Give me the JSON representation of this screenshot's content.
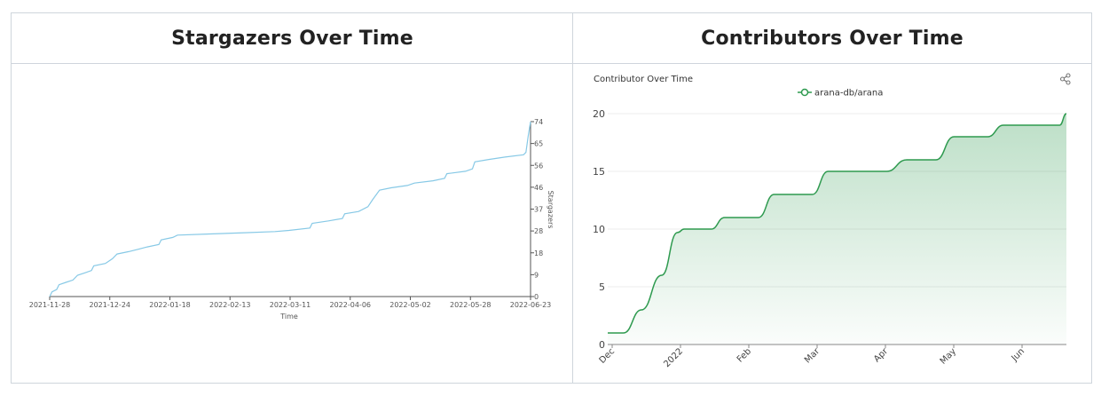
{
  "panels": {
    "stargazers": {
      "title": "Stargazers Over Time"
    },
    "contributors": {
      "title": "Contributors Over Time"
    }
  },
  "chart_data": [
    {
      "type": "line",
      "title": "",
      "xlabel": "Time",
      "ylabel": "Stargazers",
      "x_tick_labels": [
        "2021-11-28",
        "2021-12-24",
        "2022-01-18",
        "2022-02-13",
        "2022-03-11",
        "2022-04-06",
        "2022-05-02",
        "2022-05-28",
        "2022-06-23"
      ],
      "y_tick_labels": [
        "0",
        "9",
        "18",
        "28",
        "37",
        "46",
        "56",
        "65",
        "74"
      ],
      "ylim": [
        0,
        74
      ],
      "xlim": [
        "2021-11-28",
        "2022-06-23"
      ],
      "y_axis_side": "right",
      "grid": false,
      "line_color": "#87c9e6",
      "series": [
        {
          "name": "",
          "points": [
            [
              "2021-11-28",
              0
            ],
            [
              "2021-11-29",
              2
            ],
            [
              "2021-12-01",
              3
            ],
            [
              "2021-12-02",
              5
            ],
            [
              "2021-12-05",
              6
            ],
            [
              "2021-12-08",
              7
            ],
            [
              "2021-12-10",
              9
            ],
            [
              "2021-12-13",
              10
            ],
            [
              "2021-12-16",
              11
            ],
            [
              "2021-12-17",
              13
            ],
            [
              "2021-12-22",
              14
            ],
            [
              "2021-12-25",
              16
            ],
            [
              "2021-12-27",
              18
            ],
            [
              "2022-01-01",
              19
            ],
            [
              "2022-01-05",
              20
            ],
            [
              "2022-01-09",
              21
            ],
            [
              "2022-01-14",
              22
            ],
            [
              "2022-01-15",
              24
            ],
            [
              "2022-01-20",
              25
            ],
            [
              "2022-01-22",
              26
            ],
            [
              "2022-02-05",
              26.5
            ],
            [
              "2022-02-20",
              27
            ],
            [
              "2022-03-05",
              27.5
            ],
            [
              "2022-03-11",
              28
            ],
            [
              "2022-03-20",
              29
            ],
            [
              "2022-03-21",
              31
            ],
            [
              "2022-03-28",
              32
            ],
            [
              "2022-04-03",
              33
            ],
            [
              "2022-04-04",
              35
            ],
            [
              "2022-04-10",
              36
            ],
            [
              "2022-04-14",
              38
            ],
            [
              "2022-04-16",
              41
            ],
            [
              "2022-04-19",
              45
            ],
            [
              "2022-04-24",
              46
            ],
            [
              "2022-05-01",
              47
            ],
            [
              "2022-05-04",
              48
            ],
            [
              "2022-05-12",
              49
            ],
            [
              "2022-05-17",
              50
            ],
            [
              "2022-05-18",
              52
            ],
            [
              "2022-05-26",
              53
            ],
            [
              "2022-05-29",
              54
            ],
            [
              "2022-05-30",
              57
            ],
            [
              "2022-06-05",
              58
            ],
            [
              "2022-06-12",
              59
            ],
            [
              "2022-06-20",
              60
            ],
            [
              "2022-06-21",
              61
            ],
            [
              "2022-06-22",
              68
            ],
            [
              "2022-06-23",
              74
            ]
          ]
        }
      ]
    },
    {
      "type": "area",
      "title": "Contributor Over Time",
      "xlabel": "",
      "ylabel": "",
      "legend": "top-center",
      "x_tick_labels": [
        "Dec",
        "2022",
        "Feb",
        "Mar",
        "Apr",
        "May",
        "Jun"
      ],
      "y_tick_labels": [
        "0",
        "5",
        "10",
        "15",
        "20"
      ],
      "ylim": [
        0,
        20
      ],
      "xlim": [
        "2021-12-01",
        "2022-06-23"
      ],
      "grid": true,
      "line_color": "#2e9a4f",
      "fill_color": "#2e9a4f",
      "series": [
        {
          "name": "arana-db/arana",
          "points": [
            [
              "2021-12-01",
              1
            ],
            [
              "2021-12-08",
              1
            ],
            [
              "2021-12-16",
              3
            ],
            [
              "2021-12-25",
              6
            ],
            [
              "2022-01-01",
              9.7
            ],
            [
              "2022-01-04",
              10
            ],
            [
              "2022-01-16",
              10
            ],
            [
              "2022-01-22",
              11
            ],
            [
              "2022-02-06",
              11
            ],
            [
              "2022-02-13",
              13
            ],
            [
              "2022-03-02",
              13
            ],
            [
              "2022-03-09",
              15
            ],
            [
              "2022-04-04",
              15
            ],
            [
              "2022-04-13",
              16
            ],
            [
              "2022-04-26",
              16
            ],
            [
              "2022-05-04",
              18
            ],
            [
              "2022-05-19",
              18
            ],
            [
              "2022-05-26",
              19
            ],
            [
              "2022-06-20",
              19
            ],
            [
              "2022-06-23",
              20
            ]
          ]
        }
      ]
    }
  ],
  "icons": {
    "share": "share-icon"
  }
}
